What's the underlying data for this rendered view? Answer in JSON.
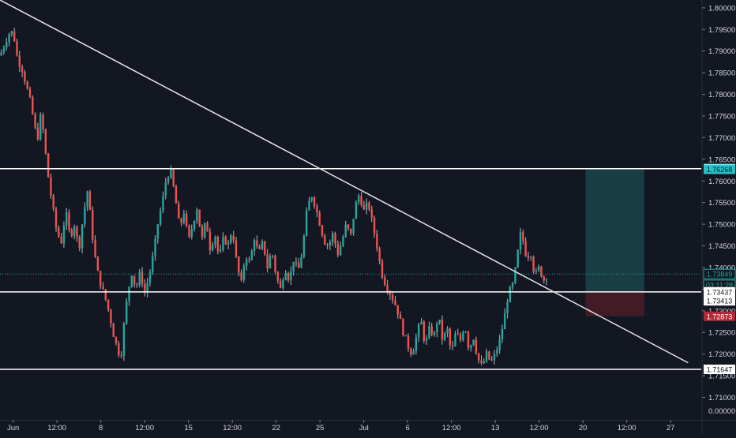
{
  "chart_data": {
    "type": "candlestick",
    "instrument_note": "",
    "colors": {
      "background": "#131722",
      "up": "#26a69a",
      "down": "#ef5350",
      "wick": "#b2b5be",
      "trendline": "#e6e6e6",
      "level": "#ffffff",
      "current_price": "#26a69a",
      "target_zone": "#1d4a4f",
      "stop_zone": "#4a1c26",
      "axis_text": "#d1d4dc",
      "grid": "#1c2130"
    },
    "y_axis": {
      "range": [
        1.7048,
        1.8018
      ],
      "ticks": [
        "1.80000",
        "1.79500",
        "1.79000",
        "1.78500",
        "1.78000",
        "1.77500",
        "1.77000",
        "1.76500",
        "1.76000",
        "1.75500",
        "1.75000",
        "1.74500",
        "1.74000",
        "1.73500",
        "1.73000",
        "1.72500",
        "1.72000",
        "1.71500",
        "1.71000"
      ],
      "extra_tick": "0.00000"
    },
    "x_axis": {
      "labels": [
        {
          "text": "Jun",
          "t": 0.0
        },
        {
          "text": "12:00",
          "t": 0.5
        },
        {
          "text": "8",
          "t": 1.0
        },
        {
          "text": "12:00",
          "t": 1.5
        },
        {
          "text": "15",
          "t": 2.0
        },
        {
          "text": "12:00",
          "t": 2.5
        },
        {
          "text": "22",
          "t": 3.0
        },
        {
          "text": "25",
          "t": 3.5
        },
        {
          "text": "Jul",
          "t": 4.0
        },
        {
          "text": "6",
          "t": 4.5
        },
        {
          "text": "12:00",
          "t": 5.0
        },
        {
          "text": "13",
          "t": 5.5
        },
        {
          "text": "12:00",
          "t": 6.0
        },
        {
          "text": "20",
          "t": 6.5
        },
        {
          "text": "12:00",
          "t": 7.0
        },
        {
          "text": "27",
          "t": 7.5
        }
      ],
      "range": [
        -0.15,
        7.85
      ]
    },
    "price_path": [
      [
        -0.15,
        1.789
      ],
      [
        -0.05,
        1.794
      ],
      [
        0.0,
        1.7945
      ],
      [
        0.05,
        1.788
      ],
      [
        0.1,
        1.786
      ],
      [
        0.15,
        1.782
      ],
      [
        0.2,
        1.778
      ],
      [
        0.25,
        1.772
      ],
      [
        0.28,
        1.77
      ],
      [
        0.32,
        1.776
      ],
      [
        0.36,
        1.768
      ],
      [
        0.4,
        1.761
      ],
      [
        0.45,
        1.754
      ],
      [
        0.5,
        1.748
      ],
      [
        0.55,
        1.746
      ],
      [
        0.6,
        1.753
      ],
      [
        0.65,
        1.747
      ],
      [
        0.7,
        1.75
      ],
      [
        0.75,
        1.744
      ],
      [
        0.8,
        1.752
      ],
      [
        0.85,
        1.758
      ],
      [
        0.9,
        1.748
      ],
      [
        0.95,
        1.74
      ],
      [
        1.0,
        1.736
      ],
      [
        1.05,
        1.733
      ],
      [
        1.1,
        1.729
      ],
      [
        1.15,
        1.724
      ],
      [
        1.2,
        1.7205
      ],
      [
        1.23,
        1.7195
      ],
      [
        1.26,
        1.726
      ],
      [
        1.3,
        1.733
      ],
      [
        1.35,
        1.739
      ],
      [
        1.4,
        1.735
      ],
      [
        1.45,
        1.739
      ],
      [
        1.5,
        1.734
      ],
      [
        1.55,
        1.738
      ],
      [
        1.6,
        1.743
      ],
      [
        1.65,
        1.75
      ],
      [
        1.7,
        1.755
      ],
      [
        1.75,
        1.761
      ],
      [
        1.8,
        1.762
      ],
      [
        1.85,
        1.756
      ],
      [
        1.9,
        1.749
      ],
      [
        1.95,
        1.753
      ],
      [
        2.0,
        1.746
      ],
      [
        2.05,
        1.75
      ],
      [
        2.1,
        1.754
      ],
      [
        2.15,
        1.746
      ],
      [
        2.2,
        1.751
      ],
      [
        2.25,
        1.744
      ],
      [
        2.3,
        1.748
      ],
      [
        2.35,
        1.742
      ],
      [
        2.4,
        1.747
      ],
      [
        2.45,
        1.745
      ],
      [
        2.5,
        1.749
      ],
      [
        2.55,
        1.741
      ],
      [
        2.6,
        1.736
      ],
      [
        2.65,
        1.743
      ],
      [
        2.7,
        1.741
      ],
      [
        2.75,
        1.747
      ],
      [
        2.8,
        1.743
      ],
      [
        2.85,
        1.746
      ],
      [
        2.9,
        1.74
      ],
      [
        2.95,
        1.744
      ],
      [
        3.0,
        1.738
      ],
      [
        3.05,
        1.735
      ],
      [
        3.1,
        1.74
      ],
      [
        3.15,
        1.737
      ],
      [
        3.2,
        1.742
      ],
      [
        3.25,
        1.739
      ],
      [
        3.3,
        1.744
      ],
      [
        3.35,
        1.753
      ],
      [
        3.4,
        1.757
      ],
      [
        3.45,
        1.754
      ],
      [
        3.5,
        1.75
      ],
      [
        3.55,
        1.746
      ],
      [
        3.6,
        1.745
      ],
      [
        3.65,
        1.748
      ],
      [
        3.7,
        1.743
      ],
      [
        3.75,
        1.746
      ],
      [
        3.8,
        1.75
      ],
      [
        3.85,
        1.747
      ],
      [
        3.9,
        1.754
      ],
      [
        3.95,
        1.757
      ],
      [
        4.0,
        1.753
      ],
      [
        4.05,
        1.755
      ],
      [
        4.1,
        1.75
      ],
      [
        4.15,
        1.745
      ],
      [
        4.2,
        1.739
      ],
      [
        4.25,
        1.736
      ],
      [
        4.3,
        1.734
      ],
      [
        4.35,
        1.732
      ],
      [
        4.4,
        1.729
      ],
      [
        4.45,
        1.725
      ],
      [
        4.5,
        1.722
      ],
      [
        4.55,
        1.72
      ],
      [
        4.6,
        1.724
      ],
      [
        4.65,
        1.728
      ],
      [
        4.7,
        1.722
      ],
      [
        4.75,
        1.726
      ],
      [
        4.8,
        1.724
      ],
      [
        4.85,
        1.729
      ],
      [
        4.9,
        1.723
      ],
      [
        4.95,
        1.726
      ],
      [
        5.0,
        1.72
      ],
      [
        5.05,
        1.725
      ],
      [
        5.1,
        1.723
      ],
      [
        5.15,
        1.727
      ],
      [
        5.2,
        1.721
      ],
      [
        5.25,
        1.724
      ],
      [
        5.3,
        1.719
      ],
      [
        5.35,
        1.717
      ],
      [
        5.4,
        1.72
      ],
      [
        5.45,
        1.718
      ],
      [
        5.5,
        1.72
      ],
      [
        5.55,
        1.723
      ],
      [
        5.6,
        1.728
      ],
      [
        5.65,
        1.734
      ],
      [
        5.7,
        1.736
      ],
      [
        5.75,
        1.742
      ],
      [
        5.78,
        1.748
      ],
      [
        5.82,
        1.746
      ],
      [
        5.86,
        1.742
      ],
      [
        5.9,
        1.744
      ],
      [
        5.95,
        1.738
      ],
      [
        6.0,
        1.74
      ],
      [
        6.05,
        1.737
      ],
      [
        6.1,
        1.7385
      ]
    ],
    "trendline": {
      "from": [
        -0.15,
        1.8018
      ],
      "to": [
        7.7,
        1.718
      ]
    },
    "horizontal_levels": [
      {
        "price": 1.76283,
        "label": "1.76283"
      },
      {
        "price": 1.73437,
        "label": "1.73437"
      },
      {
        "price": 1.71647,
        "label": "1.71647"
      }
    ],
    "position": {
      "x_start": 6.53,
      "x_end": 7.2,
      "entry": 1.73437,
      "target": 1.76268,
      "stop": 1.72873
    },
    "price_labels": [
      {
        "text": "1.76283",
        "price": 1.76283,
        "style": "level"
      },
      {
        "text": "1.76268",
        "price": 1.76268,
        "style": "target"
      },
      {
        "text": "1.73849",
        "price": 1.73849,
        "style": "current"
      },
      {
        "text": "03:11:28",
        "price": 1.736,
        "style": "countdown"
      },
      {
        "text": "1.73437",
        "price": 1.73437,
        "style": "level"
      },
      {
        "text": "1.73413",
        "price": 1.7323,
        "style": "level"
      },
      {
        "text": "1.72873",
        "price": 1.72873,
        "style": "stop"
      },
      {
        "text": "1.71647",
        "price": 1.71647,
        "style": "level"
      }
    ],
    "current_price": 1.73849
  }
}
